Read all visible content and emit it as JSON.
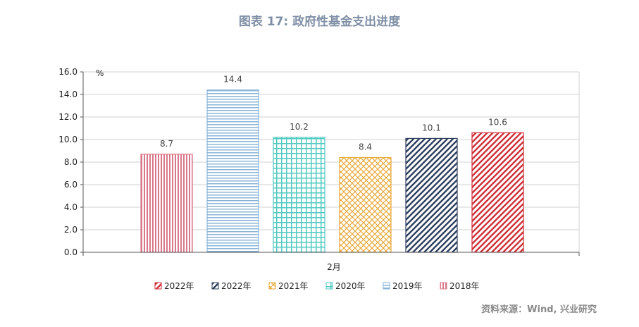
{
  "title": "图表 17: 政府性基金支出进度",
  "source": "资料来源：Wind, 兴业研究",
  "chart_data": {
    "type": "bar",
    "categories": [
      "2月"
    ],
    "ylabel": "%",
    "ylim": [
      0,
      16
    ],
    "yticks": [
      "0.0",
      "2.0",
      "4.0",
      "6.0",
      "8.0",
      "10.0",
      "12.0",
      "14.0",
      "16.0"
    ],
    "grid": true,
    "legend_position": "bottom",
    "series": [
      {
        "name": "2018年",
        "value": 8.7,
        "label": "8.7",
        "color": "#d9788a",
        "pattern": "vertical"
      },
      {
        "name": "2019年",
        "value": 14.4,
        "label": "14.4",
        "color": "#8ab4d8",
        "pattern": "horizontal"
      },
      {
        "name": "2020年",
        "value": 10.2,
        "label": "10.2",
        "color": "#4fc9c0",
        "pattern": "grid"
      },
      {
        "name": "2021年",
        "value": 8.4,
        "label": "8.4",
        "color": "#e9a83a",
        "pattern": "diamond"
      },
      {
        "name": "2022年",
        "value": 10.1,
        "label": "10.1",
        "color": "#2f3f5e",
        "pattern": "diag"
      },
      {
        "name": "2022年",
        "value": 10.6,
        "label": "10.6",
        "color": "#d0303a",
        "pattern": "diag"
      }
    ],
    "legend_order": [
      5,
      4,
      3,
      2,
      1,
      0
    ]
  }
}
